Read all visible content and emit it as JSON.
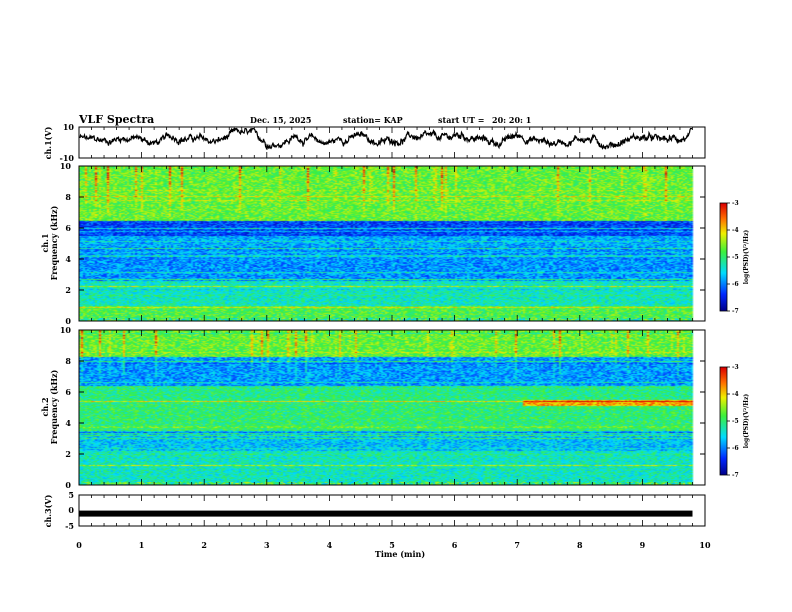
{
  "header": {
    "title": "VLF Spectra",
    "date": "Dec. 15, 2025",
    "station": "station= KAP",
    "start_label": "start  UT  =",
    "start_time": "20: 20: 1"
  },
  "chart_data": [
    {
      "id": "ch1-waveform",
      "type": "line",
      "ylabel": "ch.1(V)",
      "ylim": [
        -10,
        10
      ],
      "yticks": [
        "10",
        "-10"
      ],
      "xlim": [
        0,
        9.8
      ],
      "description_values": "noisy waveform oscillating roughly between -4 and 8 V"
    },
    {
      "id": "ch1-spectrogram",
      "type": "heatmap",
      "ylabel_top": "ch.1",
      "ylabel": "Frequency  (kHz)",
      "ylim": [
        0,
        10
      ],
      "yticks": [
        "0",
        "2",
        "4",
        "6",
        "8",
        "10"
      ],
      "xlim": [
        0,
        9.8
      ],
      "colorbar": {
        "label": "log(PSD)(V²/Hz)",
        "range": [
          -7,
          -3
        ],
        "ticks": [
          "-3",
          "-4",
          "-5",
          "-6",
          "-7"
        ]
      }
    },
    {
      "id": "ch2-spectrogram",
      "type": "heatmap",
      "ylabel_top": "ch.2",
      "ylabel": "Frequency  (kHz)",
      "ylim": [
        0,
        10
      ],
      "yticks": [
        "0",
        "2",
        "4",
        "6",
        "8",
        "10"
      ],
      "xlim": [
        0,
        9.8
      ],
      "colorbar": {
        "label": "log(PSD)(V²/Hz)",
        "range": [
          -7,
          -3
        ],
        "ticks": [
          "-3",
          "-4",
          "-5",
          "-6",
          "-7"
        ]
      }
    },
    {
      "id": "ch3-waveform",
      "type": "line",
      "ylabel": "ch.3(V)",
      "ylim": [
        -5,
        5
      ],
      "yticks": [
        "5",
        "0",
        "-5"
      ],
      "xlim": [
        0,
        9.8
      ],
      "value": -1
    }
  ],
  "xaxis": {
    "label": "Time  (min)",
    "range": [
      0,
      10
    ],
    "ticks": [
      "0",
      "1",
      "2",
      "3",
      "4",
      "5",
      "6",
      "7",
      "8",
      "9",
      "10"
    ]
  }
}
